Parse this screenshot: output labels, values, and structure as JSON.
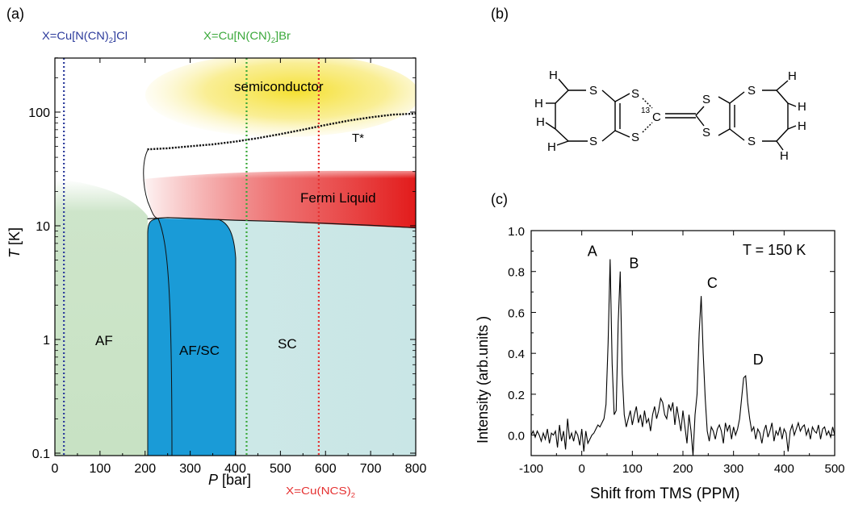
{
  "panel_labels": {
    "a": "(a)",
    "b": "(b)",
    "c": "(c)"
  },
  "colors": {
    "af": "#c8e2c4",
    "sc": "#cfe9e8",
    "afsc": "#1a9bd7",
    "fermi": "#e21b1b",
    "semi": "#f5e24a",
    "cl_line": "#2b3a9b",
    "br_line": "#3aa83a",
    "ncs_line": "#e53030"
  },
  "phase_diagram": {
    "xlabel_italic": "P",
    "xlabel_rest": " [bar]",
    "ylabel_italic": "T",
    "ylabel_rest": " [K]",
    "regions": {
      "af": "AF",
      "afsc": "AF/SC",
      "sc": "SC",
      "fermi": "Fermi Liquid",
      "semi": "semiconductor",
      "tstar": "T*"
    },
    "compounds": {
      "cl": {
        "main": "X=Cu[N(CN)",
        "sub": "2",
        "tail": "]Cl"
      },
      "br": {
        "main": "X=Cu[N(CN)",
        "sub": "2",
        "tail": "]Br"
      },
      "ncs": {
        "main": "X=Cu(NCS)",
        "sub": "2",
        "tail": ""
      }
    }
  },
  "molecule": {
    "S": "S",
    "H": "H",
    "C": "C",
    "isotope": "13"
  },
  "chart_data": [
    {
      "type": "area",
      "panel": "a",
      "xlim": [
        0,
        800
      ],
      "ylim": [
        0.1,
        300
      ],
      "yscale": "log",
      "xticks": [
        0,
        100,
        200,
        300,
        400,
        500,
        600,
        700,
        800
      ],
      "yticks": [
        0.1,
        1,
        10,
        100
      ],
      "ytick_labels": [
        "0.1",
        "1",
        "10",
        "100"
      ],
      "compound_pressures": {
        "cl": 20,
        "br": 425,
        "ncs": 585
      },
      "tstar_line": {
        "x": [
          205,
          250,
          300,
          350,
          400,
          450,
          500,
          550,
          600,
          650,
          700,
          750,
          800
        ],
        "y": [
          47,
          48,
          50,
          52,
          55,
          59,
          64,
          70,
          77,
          84,
          90,
          95,
          97
        ]
      },
      "sc_boundary": {
        "x": [
          205,
          250,
          300,
          350,
          400,
          500,
          600,
          700,
          800
        ],
        "y": [
          11.5,
          11.8,
          11.6,
          11.4,
          11.2,
          10.9,
          10.5,
          10.1,
          9.6
        ]
      }
    },
    {
      "type": "line",
      "panel": "c",
      "xlabel": "Shift from TMS (PPM)",
      "ylabel": "Intensity (arb.units )",
      "annotation": "T = 150 K",
      "xlim": [
        -100,
        500
      ],
      "ylim": [
        -0.1,
        1.0
      ],
      "xticks": [
        -100,
        0,
        100,
        200,
        300,
        400,
        500
      ],
      "yticks": [
        0.0,
        0.2,
        0.4,
        0.6,
        0.8,
        1.0
      ],
      "ytick_labels": [
        "0.0",
        "0.2",
        "0.4",
        "0.6",
        "0.8",
        "1.0"
      ],
      "peaks": [
        {
          "label": "A",
          "x": 56,
          "y": 0.86
        },
        {
          "label": "B",
          "x": 81,
          "y": 0.8
        },
        {
          "label": "C",
          "x": 238,
          "y": 0.68
        },
        {
          "label": "D",
          "x": 332,
          "y": 0.29
        }
      ],
      "spectrum": {
        "x": [
          -100,
          -96,
          -92,
          -88,
          -84,
          -80,
          -76,
          -72,
          -68,
          -64,
          -60,
          -56,
          -52,
          -48,
          -44,
          -40,
          -36,
          -32,
          -28,
          -24,
          -20,
          -16,
          -12,
          -8,
          -4,
          0,
          4,
          8,
          12,
          16,
          20,
          24,
          28,
          32,
          36,
          40,
          44,
          48,
          52,
          56,
          60,
          64,
          68,
          72,
          76,
          80,
          84,
          88,
          92,
          96,
          100,
          104,
          108,
          112,
          116,
          120,
          124,
          128,
          132,
          136,
          140,
          144,
          148,
          152,
          156,
          160,
          164,
          168,
          172,
          176,
          180,
          184,
          188,
          192,
          196,
          200,
          204,
          208,
          212,
          216,
          220,
          224,
          228,
          232,
          236,
          240,
          244,
          248,
          252,
          256,
          260,
          264,
          268,
          272,
          276,
          280,
          284,
          288,
          292,
          296,
          300,
          304,
          308,
          312,
          316,
          320,
          324,
          328,
          332,
          336,
          340,
          344,
          348,
          352,
          356,
          360,
          364,
          368,
          372,
          376,
          380,
          384,
          388,
          392,
          396,
          400,
          404,
          408,
          412,
          416,
          420,
          424,
          428,
          432,
          436,
          440,
          444,
          448,
          452,
          456,
          460,
          464,
          468,
          472,
          476,
          480,
          484,
          488,
          492,
          496,
          500
        ],
        "y": [
          0.0,
          0.02,
          -0.01,
          0.02,
          0.0,
          -0.03,
          0.01,
          -0.02,
          0.03,
          -0.04,
          0.01,
          0.0,
          0.02,
          -0.06,
          0.05,
          -0.03,
          0.02,
          -0.07,
          0.08,
          -0.02,
          0.01,
          -0.03,
          0.02,
          0.0,
          -0.05,
          0.03,
          -0.08,
          0.02,
          -0.04,
          -0.02,
          0.0,
          0.01,
          0.03,
          0.05,
          0.04,
          0.06,
          0.08,
          0.15,
          0.45,
          0.86,
          0.35,
          0.1,
          0.12,
          0.55,
          0.8,
          0.3,
          0.1,
          0.04,
          0.08,
          0.12,
          0.05,
          0.1,
          0.14,
          0.06,
          0.1,
          0.04,
          0.12,
          0.06,
          0.08,
          0.02,
          0.1,
          0.14,
          0.08,
          0.12,
          0.18,
          0.16,
          0.1,
          0.08,
          0.15,
          0.12,
          0.16,
          0.05,
          0.14,
          0.08,
          0.02,
          0.12,
          0.04,
          -0.04,
          0.1,
          0.02,
          -0.1,
          0.1,
          0.2,
          0.5,
          0.68,
          0.4,
          0.18,
          0.02,
          -0.03,
          0.04,
          0.02,
          -0.02,
          0.03,
          0.05,
          0.02,
          -0.04,
          0.06,
          0.02,
          0.05,
          -0.02,
          0.04,
          0.0,
          0.03,
          0.08,
          0.18,
          0.28,
          0.29,
          0.16,
          0.08,
          0.02,
          0.04,
          -0.02,
          0.03,
          0.01,
          -0.04,
          0.02,
          0.05,
          -0.01,
          0.02,
          0.06,
          -0.03,
          0.02,
          0.0,
          0.04,
          -0.02,
          0.03,
          0.01,
          -0.08,
          0.02,
          0.05,
          0.0,
          0.03,
          0.06,
          0.02,
          0.04,
          0.05,
          0.0,
          0.03,
          -0.02,
          0.04,
          0.02,
          0.01,
          0.05,
          -0.02,
          0.03,
          0.04,
          0.0,
          0.02,
          -0.01,
          0.04,
          0.0
        ]
      }
    }
  ]
}
